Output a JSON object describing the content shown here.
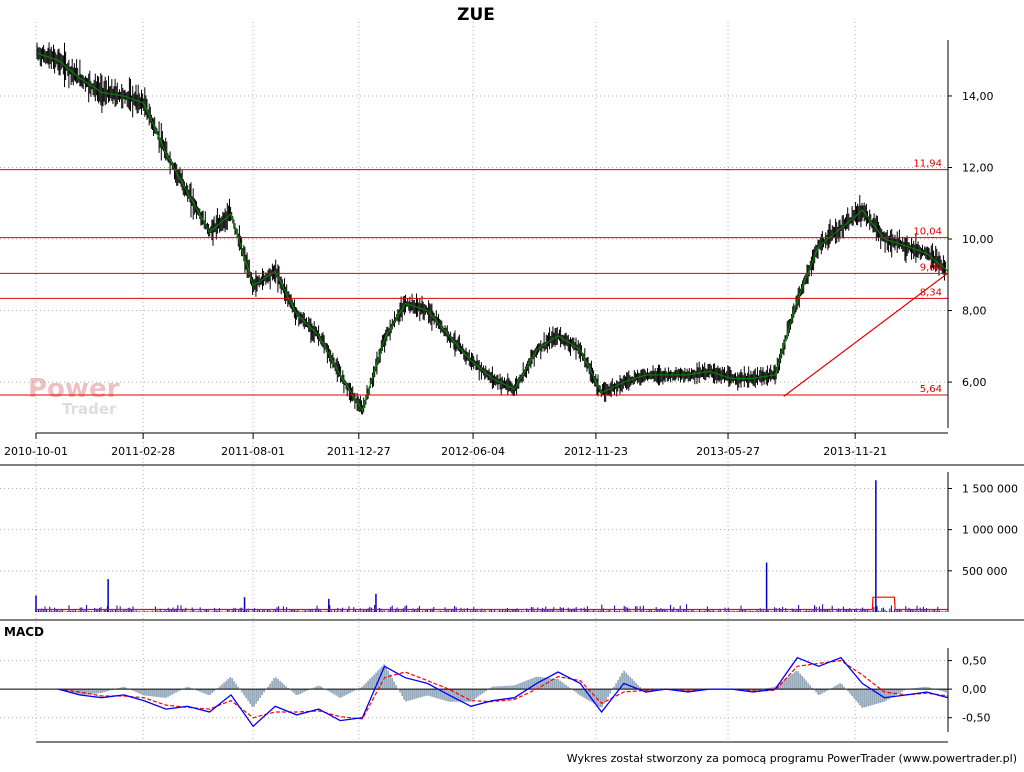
{
  "title": "ZUE",
  "footer": "Wykres został stworzony za pomocą programu PowerTrader (www.powertrader.pl)",
  "watermark": {
    "line1": "Power",
    "line2": "Trader"
  },
  "colors": {
    "price_line": "#008000",
    "candles": "#000000",
    "levels": "#e00000",
    "volume_bars": "#0000c0",
    "volume_avg": "#ff0000",
    "macd_line": "#0000ff",
    "signal_line": "#ff0000",
    "histogram": "#8aa0b4",
    "grid": "#b0b0b0"
  },
  "chart_data": [
    {
      "type": "line",
      "name": "price-panel",
      "title": "ZUE",
      "x_ticks": [
        "2010-10-01",
        "2011-02-28",
        "2011-08-01",
        "2011-12-27",
        "2012-06-04",
        "2012-11-23",
        "2013-05-27",
        "2013-11-21"
      ],
      "y_ticks": [
        "14,00",
        "12,00",
        "10,00",
        "8,00",
        "6,00"
      ],
      "ylim": [
        4.8,
        15.9
      ],
      "levels": [
        {
          "label": "11,94",
          "value": 11.94
        },
        {
          "label": "10,04",
          "value": 10.04
        },
        {
          "label": "9,04",
          "value": 9.04
        },
        {
          "label": "8,34",
          "value": 8.34
        },
        {
          "label": "5,64",
          "value": 5.64
        }
      ],
      "trendline": {
        "from": [
          "2013-08-13",
          5.6
        ],
        "to": [
          "2014-03-31",
          9.05
        ]
      },
      "series": [
        {
          "name": "close",
          "x": [
            "2010-10-01",
            "2010-11-01",
            "2010-12-01",
            "2011-01-01",
            "2011-02-01",
            "2011-03-01",
            "2011-04-01",
            "2011-05-01",
            "2011-06-01",
            "2011-07-01",
            "2011-08-01",
            "2011-09-01",
            "2011-10-01",
            "2011-11-01",
            "2011-12-01",
            "2012-01-01",
            "2012-02-01",
            "2012-03-01",
            "2012-04-01",
            "2012-05-01",
            "2012-06-01",
            "2012-07-01",
            "2012-08-01",
            "2012-09-01",
            "2012-10-01",
            "2012-11-01",
            "2012-12-01",
            "2013-01-01",
            "2013-02-01",
            "2013-03-01",
            "2013-04-01",
            "2013-05-01",
            "2013-06-01",
            "2013-07-01",
            "2013-08-01",
            "2013-09-01",
            "2013-10-01",
            "2013-11-01",
            "2013-12-01",
            "2014-01-01",
            "2014-02-01",
            "2014-03-01",
            "2014-03-31"
          ],
          "y": [
            15.2,
            15.0,
            14.5,
            14.1,
            14.0,
            13.8,
            12.4,
            11.3,
            10.2,
            10.7,
            8.7,
            9.1,
            7.9,
            7.3,
            6.2,
            5.2,
            7.2,
            8.2,
            8.0,
            7.3,
            6.6,
            6.1,
            5.8,
            6.9,
            7.3,
            6.9,
            5.7,
            6.0,
            6.2,
            6.2,
            6.2,
            6.3,
            6.1,
            6.1,
            6.2,
            8.3,
            9.8,
            10.3,
            10.8,
            10.0,
            9.8,
            9.6,
            9.1
          ]
        }
      ]
    },
    {
      "type": "bar",
      "name": "volume-panel",
      "y_ticks": [
        "1 500 000",
        "1 000 000",
        "500 000"
      ],
      "ylim": [
        0,
        1700000
      ],
      "spikes": [
        {
          "x": "2010-10-01",
          "value": 200000
        },
        {
          "x": "2011-01-10",
          "value": 400000
        },
        {
          "x": "2011-07-20",
          "value": 180000
        },
        {
          "x": "2011-11-15",
          "value": 160000
        },
        {
          "x": "2012-01-20",
          "value": 220000
        },
        {
          "x": "2013-07-20",
          "value": 600000
        },
        {
          "x": "2013-12-20",
          "value": 1600000
        }
      ],
      "series": [
        {
          "name": "avg",
          "x": [
            "2010-10-01",
            "2013-12-15",
            "2013-12-16",
            "2014-01-15",
            "2014-01-16",
            "2014-03-31"
          ],
          "y": [
            30000,
            30000,
            180000,
            180000,
            30000,
            30000
          ]
        }
      ]
    },
    {
      "type": "line",
      "name": "macd-panel",
      "title": "MACD",
      "y_ticks": [
        "0,50",
        "0,00",
        "-0,50"
      ],
      "ylim": [
        -0.75,
        0.72
      ],
      "series": [
        {
          "name": "macd",
          "x": [
            "2010-11-01",
            "2010-12-01",
            "2011-01-01",
            "2011-02-01",
            "2011-03-01",
            "2011-04-01",
            "2011-05-01",
            "2011-06-01",
            "2011-07-01",
            "2011-08-01",
            "2011-09-01",
            "2011-10-01",
            "2011-11-01",
            "2011-12-01",
            "2012-01-01",
            "2012-02-01",
            "2012-03-01",
            "2012-04-01",
            "2012-05-01",
            "2012-06-01",
            "2012-07-01",
            "2012-08-01",
            "2012-09-01",
            "2012-10-01",
            "2012-11-01",
            "2012-12-01",
            "2013-01-01",
            "2013-02-01",
            "2013-03-01",
            "2013-04-01",
            "2013-05-01",
            "2013-06-01",
            "2013-07-01",
            "2013-08-01",
            "2013-09-01",
            "2013-10-01",
            "2013-11-01",
            "2013-12-01",
            "2014-01-01",
            "2014-02-01",
            "2014-03-01",
            "2014-03-31"
          ],
          "y": [
            0.0,
            -0.1,
            -0.15,
            -0.1,
            -0.2,
            -0.35,
            -0.3,
            -0.4,
            -0.1,
            -0.65,
            -0.3,
            -0.45,
            -0.35,
            -0.55,
            -0.5,
            0.4,
            0.2,
            0.1,
            -0.1,
            -0.3,
            -0.2,
            -0.15,
            0.1,
            0.3,
            0.1,
            -0.4,
            0.1,
            -0.05,
            0.0,
            -0.05,
            0.0,
            0.0,
            -0.05,
            0.0,
            0.55,
            0.4,
            0.55,
            0.1,
            -0.15,
            -0.1,
            -0.05,
            -0.15
          ]
        },
        {
          "name": "signal",
          "x": [
            "2010-11-01",
            "2010-12-01",
            "2011-01-01",
            "2011-02-01",
            "2011-03-01",
            "2011-04-01",
            "2011-05-01",
            "2011-06-01",
            "2011-07-01",
            "2011-08-01",
            "2011-09-01",
            "2011-10-01",
            "2011-11-01",
            "2011-12-01",
            "2012-01-01",
            "2012-02-01",
            "2012-03-01",
            "2012-04-01",
            "2012-05-01",
            "2012-06-01",
            "2012-07-01",
            "2012-08-01",
            "2012-09-01",
            "2012-10-01",
            "2012-11-01",
            "2012-12-01",
            "2013-01-01",
            "2013-02-01",
            "2013-03-01",
            "2013-04-01",
            "2013-05-01",
            "2013-06-01",
            "2013-07-01",
            "2013-08-01",
            "2013-09-01",
            "2013-10-01",
            "2013-11-01",
            "2013-12-01",
            "2014-01-01",
            "2014-02-01",
            "2014-03-01",
            "2014-03-31"
          ],
          "y": [
            0.0,
            -0.05,
            -0.12,
            -0.12,
            -0.15,
            -0.28,
            -0.32,
            -0.35,
            -0.2,
            -0.5,
            -0.4,
            -0.4,
            -0.38,
            -0.48,
            -0.52,
            0.2,
            0.3,
            0.15,
            0.0,
            -0.2,
            -0.22,
            -0.18,
            0.0,
            0.22,
            0.15,
            -0.25,
            -0.05,
            -0.02,
            0.0,
            -0.03,
            0.0,
            0.0,
            -0.03,
            -0.02,
            0.4,
            0.45,
            0.5,
            0.25,
            -0.05,
            -0.1,
            -0.07,
            -0.12
          ]
        }
      ]
    }
  ]
}
